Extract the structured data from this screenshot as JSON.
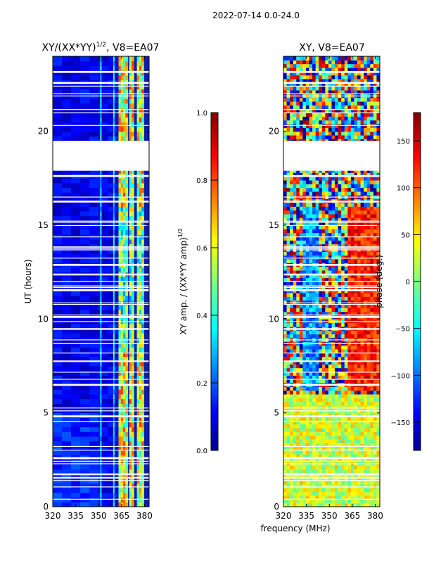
{
  "suptitle": "2022-07-14 0.0-24.0",
  "xlabel_shared": "frequency (MHz)",
  "chart_data": [
    {
      "type": "heatmap",
      "title": "XY/(XX*YY)",
      "title_superscript": "1/2",
      "title_suffix": ", V8=EA07",
      "ylabel": "UT (hours)",
      "xlim": [
        320,
        383
      ],
      "ylim": [
        0,
        24
      ],
      "xticks": [
        320,
        335,
        350,
        365,
        380
      ],
      "yticks": [
        0,
        5,
        10,
        15,
        20
      ],
      "colormap": "jet",
      "colorbar": {
        "label": "XY amp. / (XX*YY amp)",
        "label_superscript": "1/2",
        "range": [
          0.0,
          1.0
        ],
        "ticks": [
          "0.0",
          "0.2",
          "0.4",
          "0.6",
          "0.8",
          "1.0"
        ]
      },
      "data_gaps_hours": [
        [
          17.9,
          19.5
        ]
      ],
      "bright_channels_mhz": [
        [
          363,
          368
        ],
        [
          370,
          373
        ],
        [
          375,
          379
        ]
      ]
    },
    {
      "type": "heatmap",
      "title": "XY, V8=EA07",
      "ylabel": "",
      "xlim": [
        320,
        383
      ],
      "ylim": [
        0,
        24
      ],
      "xticks": [
        320,
        335,
        350,
        365,
        380
      ],
      "yticks": [
        0,
        5,
        10,
        15,
        20
      ],
      "colormap": "jet",
      "colorbar": {
        "label": "phase (deg.)",
        "range": [
          -180,
          180
        ],
        "ticks": [
          "−150",
          "−100",
          "−50",
          "0",
          "50",
          "100",
          "150"
        ]
      },
      "data_gaps_hours": [
        [
          17.9,
          19.5
        ]
      ]
    }
  ]
}
